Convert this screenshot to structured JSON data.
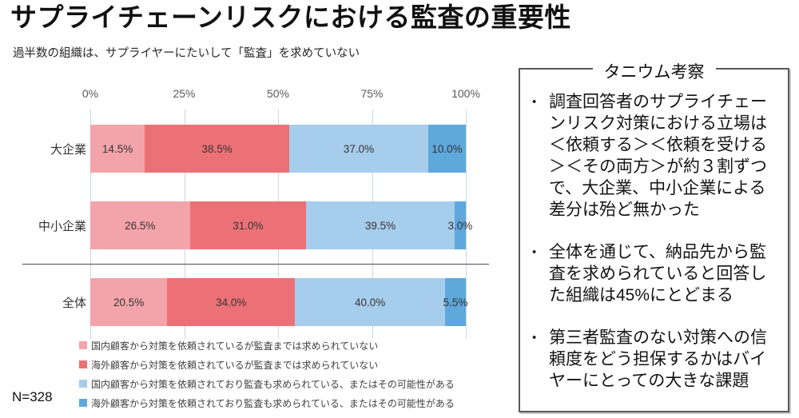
{
  "page": {
    "title": "サプライチェーンリスクにおける監査の重要性",
    "subtitle": "過半数の組織は、サプライヤーにたいして「監査」を求めていない",
    "sample_size": "N=328"
  },
  "chart_data": {
    "type": "bar",
    "orientation": "horizontal",
    "stacked": true,
    "categories": [
      "大企業",
      "中小企業",
      "全体"
    ],
    "series": [
      {
        "name": "国内顧客から対策を依頼されているが監査までは求められていない",
        "color": "#F3A4AA",
        "values": [
          14.5,
          26.5,
          20.5
        ],
        "labels": [
          "14.5%",
          "26.5%",
          "20.5%"
        ]
      },
      {
        "name": "海外顧客から対策を依頼されているが監査までは求められていない",
        "color": "#EC7176",
        "values": [
          38.5,
          31.0,
          34.0
        ],
        "labels": [
          "38.5%",
          "31.0%",
          "34.0%"
        ]
      },
      {
        "name": "国内顧客から対策を依頼されており監査も求められている、またはその可能性がある",
        "color": "#A7CDEC",
        "values": [
          37.0,
          39.5,
          40.0
        ],
        "labels": [
          "37.0%",
          "39.5%",
          "40.0%"
        ]
      },
      {
        "name": "海外顧客から対策を依頼されており監査も求められている、またはその可能性がある",
        "color": "#5EA8DC",
        "values": [
          10.0,
          3.0,
          5.5
        ],
        "labels": [
          "10.0%",
          "3.0%",
          "5.5%"
        ]
      }
    ],
    "x_ticks": [
      "0%",
      "25%",
      "50%",
      "75%",
      "100%"
    ],
    "xlim": [
      0,
      100
    ],
    "grid": true,
    "legend_position": "bottom",
    "separator_between": [
      "中小企業",
      "全体"
    ]
  },
  "insights_panel": {
    "title": "タニウム考察",
    "bullets": [
      "調査回答者のサプライチェーンリスク対策における立場は＜依頼する＞＜依頼を受ける＞＜その両方＞が約３割ずつで、大企業、中小企業による差分は殆ど無かった",
      "全体を通じて、納品先から監査を求められていると回答した組織は45%にとどまる",
      "第三者監査のない対策への信頼度をどう担保するかはバイヤーにとっての大きな課題"
    ]
  }
}
